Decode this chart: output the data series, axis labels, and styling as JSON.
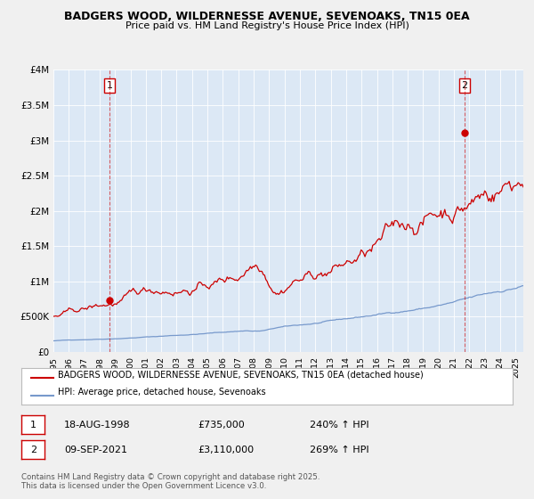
{
  "title": "BADGERS WOOD, WILDERNESSE AVENUE, SEVENOAKS, TN15 0EA",
  "subtitle": "Price paid vs. HM Land Registry's House Price Index (HPI)",
  "bg_color": "#f0f0f0",
  "plot_bg_color": "#dce8f5",
  "red_line_color": "#cc0000",
  "blue_line_color": "#7799cc",
  "marker1_date_x": 1998.63,
  "marker1_y": 735000,
  "marker2_date_x": 2021.69,
  "marker2_y": 3110000,
  "vline1_x": 1998.63,
  "vline2_x": 2021.69,
  "ylim": [
    0,
    4000000
  ],
  "xlim_start": 1995,
  "xlim_end": 2025.5,
  "legend_label_red": "BADGERS WOOD, WILDERNESSE AVENUE, SEVENOAKS, TN15 0EA (detached house)",
  "legend_label_blue": "HPI: Average price, detached house, Sevenoaks",
  "annotation1_label": "1",
  "annotation2_label": "2",
  "table_row1": [
    "1",
    "18-AUG-1998",
    "£735,000",
    "240% ↑ HPI"
  ],
  "table_row2": [
    "2",
    "09-SEP-2021",
    "£3,110,000",
    "269% ↑ HPI"
  ],
  "footer": "Contains HM Land Registry data © Crown copyright and database right 2025.\nThis data is licensed under the Open Government Licence v3.0.",
  "yticks": [
    0,
    500000,
    1000000,
    1500000,
    2000000,
    2500000,
    3000000,
    3500000,
    4000000
  ],
  "ytick_labels": [
    "£0",
    "£500K",
    "£1M",
    "£1.5M",
    "£2M",
    "£2.5M",
    "£3M",
    "£3.5M",
    "£4M"
  ]
}
